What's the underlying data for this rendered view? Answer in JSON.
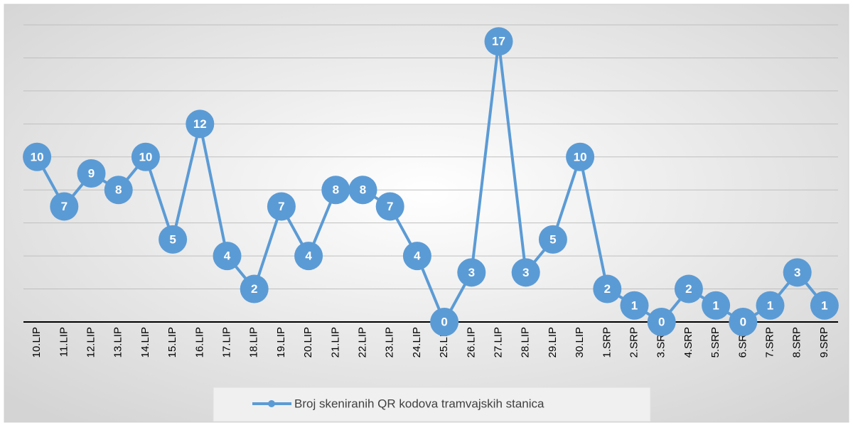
{
  "chart_data": {
    "type": "line",
    "categories": [
      "10.LIP",
      "11.LIP",
      "12.LIP",
      "13.LIP",
      "14.LIP",
      "15.LIP",
      "16.LIP",
      "17.LIP",
      "18.LIP",
      "19.LIP",
      "20.LIP",
      "21.LIP",
      "22.LIP",
      "23.LIP",
      "24.LIP",
      "25.LIP",
      "26.LIP",
      "27.LIP",
      "28.LIP",
      "29.LIP",
      "30.LIP",
      "1.SRP",
      "2.SRP",
      "3.SRP",
      "4.SRP",
      "5.SRP",
      "6.SRP",
      "7.SRP",
      "8.SRP",
      "9.SRP"
    ],
    "series": [
      {
        "name": "Broj skeniranih QR kodova tramvajskih stanica",
        "color": "#5b9bd5",
        "values": [
          10,
          7,
          9,
          8,
          10,
          5,
          12,
          4,
          2,
          7,
          4,
          8,
          8,
          7,
          4,
          0,
          3,
          17,
          3,
          5,
          10,
          2,
          1,
          0,
          2,
          1,
          0,
          1,
          3,
          1
        ]
      }
    ],
    "ylim": [
      0,
      18
    ],
    "yticks": [
      0,
      2,
      4,
      6,
      8,
      10,
      12,
      14,
      16,
      18
    ],
    "grid": true,
    "legend": "bottom",
    "data_labels": true
  }
}
